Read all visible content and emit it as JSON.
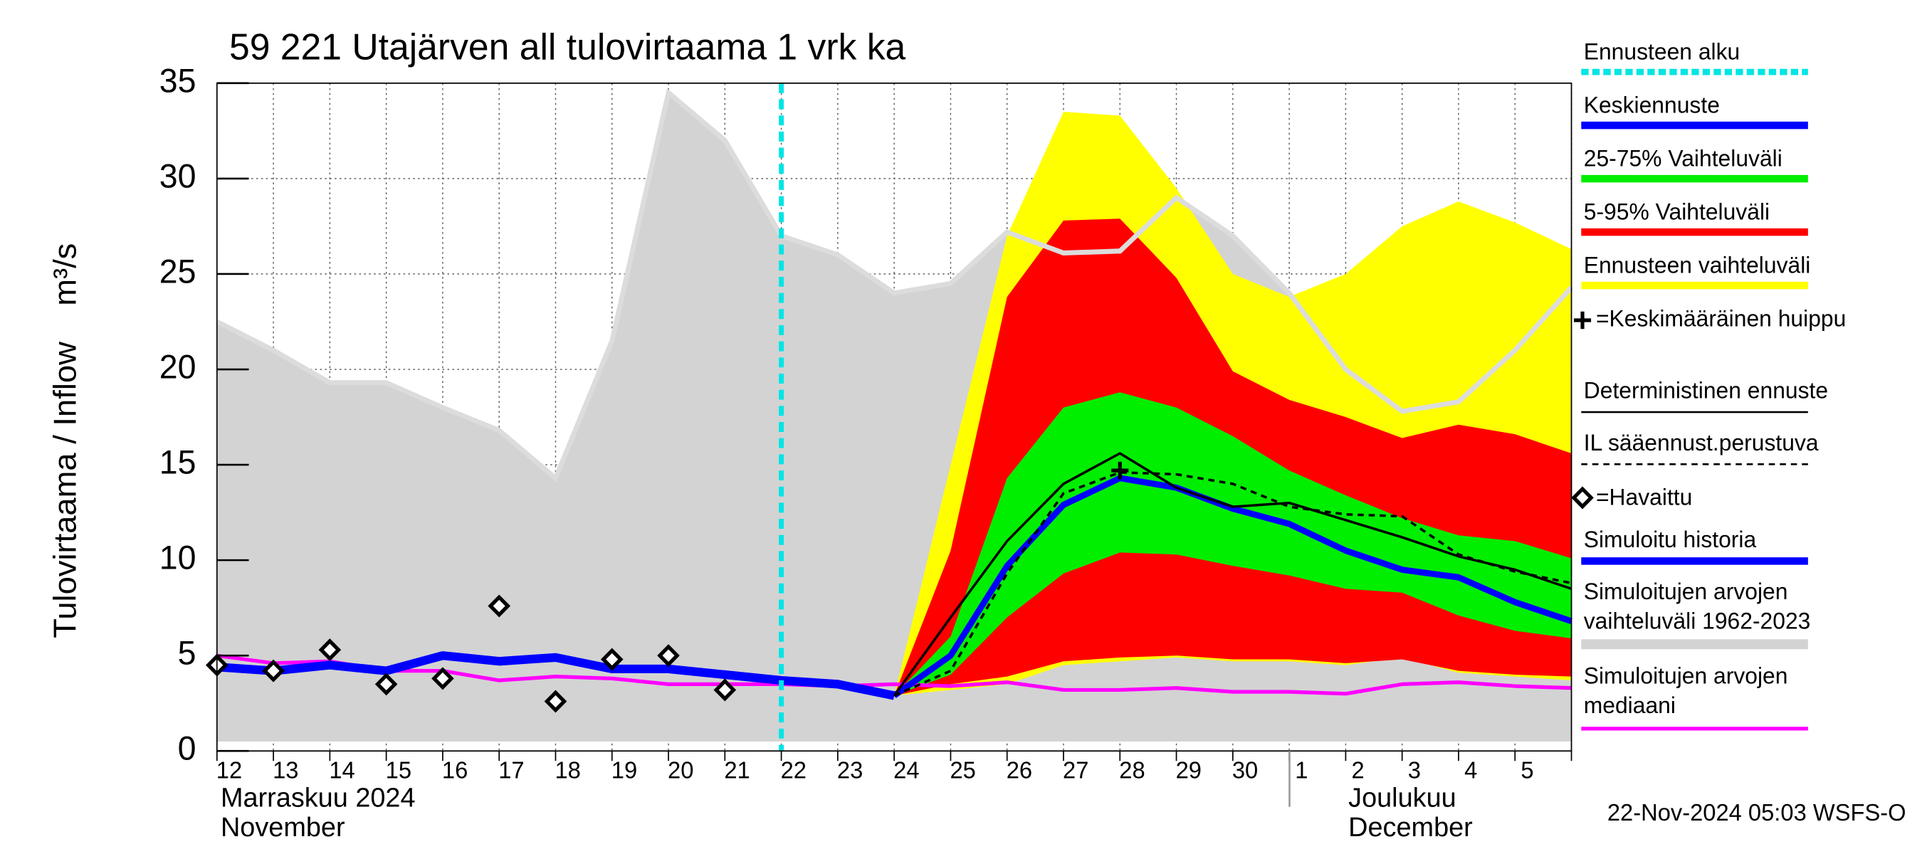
{
  "chart_data": {
    "type": "area",
    "title": "59 221 Utajärven all tulovirtaama 1 vrk ka",
    "ylabel": "Tulovirtaama / Inflow    m³/s",
    "month_labels": [
      "Marraskuu 2024",
      "November",
      "Joulukuu",
      "December"
    ],
    "footer": "22-Nov-2024 05:03 WSFS-O",
    "categories": [
      "12",
      "13",
      "14",
      "15",
      "16",
      "17",
      "18",
      "19",
      "20",
      "21",
      "22",
      "23",
      "24",
      "25",
      "26",
      "27",
      "28",
      "29",
      "30",
      "1",
      "2",
      "3",
      "4",
      "5",
      null
    ],
    "ylim": [
      0,
      35
    ],
    "yticks": [
      0,
      5,
      10,
      15,
      20,
      25,
      30,
      35
    ],
    "grid": true,
    "forecast_start": {
      "name": "Ennusteen alku",
      "category": "22",
      "color": "#00e5e5"
    },
    "peak": {
      "name": "=Keskimääräinen huippu",
      "category": "28",
      "value": 14.7,
      "color": "#000000"
    },
    "series": [
      {
        "name": "Simuloitujen arvojen\nvaihteluväli 1962-2023",
        "kind": "band",
        "color": "#d3d3d3",
        "line_color": "#dcdcdc",
        "lower": [
          0.5,
          0.5,
          0.5,
          0.5,
          0.5,
          0.5,
          0.5,
          0.5,
          0.5,
          0.5,
          0.5,
          0.5,
          0.5,
          0.5,
          0.5,
          0.5,
          0.5,
          0.5,
          0.5,
          0.5,
          0.5,
          0.5,
          0.5,
          0.5,
          0.5
        ],
        "upper": [
          22.5,
          21,
          19.3,
          19.3,
          18,
          16.8,
          14.3,
          21.5,
          34.5,
          32,
          27,
          26,
          24,
          24.5,
          27.2,
          26.1,
          26.2,
          29,
          27,
          24,
          20,
          17.8,
          18.3,
          21,
          24.3
        ]
      },
      {
        "name": "Ennusteen vaihteluväli",
        "kind": "band",
        "color": "#ffff00",
        "lower": [
          null,
          null,
          null,
          null,
          null,
          null,
          null,
          null,
          null,
          null,
          null,
          null,
          2.9,
          3.2,
          3.5,
          4.5,
          4.7,
          4.9,
          4.7,
          4.7,
          4.5,
          4.9,
          4.1,
          3.9,
          3.7
        ],
        "upper": [
          null,
          null,
          null,
          null,
          null,
          null,
          null,
          null,
          null,
          null,
          null,
          null,
          2.9,
          15,
          27,
          33.5,
          33.3,
          29.5,
          25,
          23.8,
          25,
          27.5,
          28.8,
          27.7,
          26.3
        ]
      },
      {
        "name": "5-95% Vaihteluväli",
        "kind": "band",
        "color": "#ff0000",
        "lower": [
          null,
          null,
          null,
          null,
          null,
          null,
          null,
          null,
          null,
          null,
          null,
          null,
          2.9,
          3.5,
          3.9,
          4.7,
          4.9,
          5,
          4.8,
          4.8,
          4.6,
          4.8,
          4.2,
          4,
          3.9
        ],
        "upper": [
          null,
          null,
          null,
          null,
          null,
          null,
          null,
          null,
          null,
          null,
          null,
          null,
          2.9,
          10.5,
          23.8,
          27.8,
          27.9,
          24.8,
          19.9,
          18.4,
          17.5,
          16.4,
          17.1,
          16.6,
          15.6
        ]
      },
      {
        "name": "25-75% Vaihteluväli",
        "kind": "band",
        "color": "#00ee00",
        "lower": [
          null,
          null,
          null,
          null,
          null,
          null,
          null,
          null,
          null,
          null,
          null,
          null,
          2.9,
          4,
          7,
          9.3,
          10.4,
          10.3,
          9.7,
          9.2,
          8.5,
          8.3,
          7.1,
          6.3,
          5.9
        ],
        "upper": [
          null,
          null,
          null,
          null,
          null,
          null,
          null,
          null,
          null,
          null,
          null,
          null,
          2.9,
          6,
          14.3,
          18,
          18.8,
          18,
          16.5,
          14.7,
          13.4,
          12.2,
          11.3,
          11,
          10.1
        ]
      },
      {
        "name": "Simuloitujen arvojen\nmediaani",
        "kind": "line",
        "color": "#ff00ff",
        "width": 3,
        "values": [
          5,
          4.6,
          4.7,
          4.2,
          4.2,
          3.7,
          3.9,
          3.8,
          3.5,
          3.5,
          3.5,
          3.4,
          3.5,
          3.4,
          3.6,
          3.2,
          3.2,
          3.3,
          3.1,
          3.1,
          3,
          3.5,
          3.6,
          3.4,
          3.3
        ]
      },
      {
        "name": "Simuloitu historia",
        "kind": "line",
        "color": "#0000ff",
        "width": 7,
        "values": [
          4.4,
          4.2,
          4.5,
          4.2,
          5,
          4.7,
          4.9,
          4.3,
          4.3,
          4,
          3.7,
          3.5,
          2.9,
          null,
          null,
          null,
          null,
          null,
          null,
          null,
          null,
          null,
          null,
          null,
          null
        ]
      },
      {
        "name": "Keskiennuste",
        "kind": "line",
        "color": "#0000ff",
        "width": 5,
        "values": [
          null,
          null,
          null,
          null,
          null,
          null,
          null,
          null,
          null,
          null,
          null,
          null,
          2.9,
          5,
          9.7,
          12.9,
          14.3,
          13.8,
          12.7,
          11.9,
          10.5,
          9.5,
          9.1,
          7.8,
          6.8
        ]
      },
      {
        "name": "Deterministinen ennuste",
        "kind": "line",
        "color": "#000000",
        "width": 2,
        "values": [
          null,
          null,
          null,
          null,
          null,
          null,
          null,
          null,
          null,
          null,
          null,
          null,
          2.9,
          7,
          11,
          14,
          15.6,
          13.8,
          12.8,
          13,
          12.1,
          11.2,
          10.2,
          9.5,
          8.5
        ]
      },
      {
        "name": "IL sääennust.perustuva",
        "kind": "line",
        "color": "#000000",
        "width": 2,
        "dashed": true,
        "values": [
          null,
          null,
          null,
          null,
          null,
          null,
          null,
          null,
          null,
          null,
          null,
          null,
          2.9,
          4.2,
          9.3,
          13.5,
          14.6,
          14.5,
          14,
          12.8,
          12.4,
          12.3,
          10.3,
          9.4,
          8.8
        ]
      },
      {
        "name": "=Havaittu",
        "kind": "scatter",
        "color": "#000000",
        "values": [
          4.5,
          4.2,
          5.3,
          3.5,
          3.8,
          7.6,
          2.6,
          4.8,
          5,
          3.2,
          null,
          null,
          null,
          null,
          null,
          null,
          null,
          null,
          null,
          null,
          null,
          null,
          null,
          null,
          null
        ]
      }
    ]
  }
}
